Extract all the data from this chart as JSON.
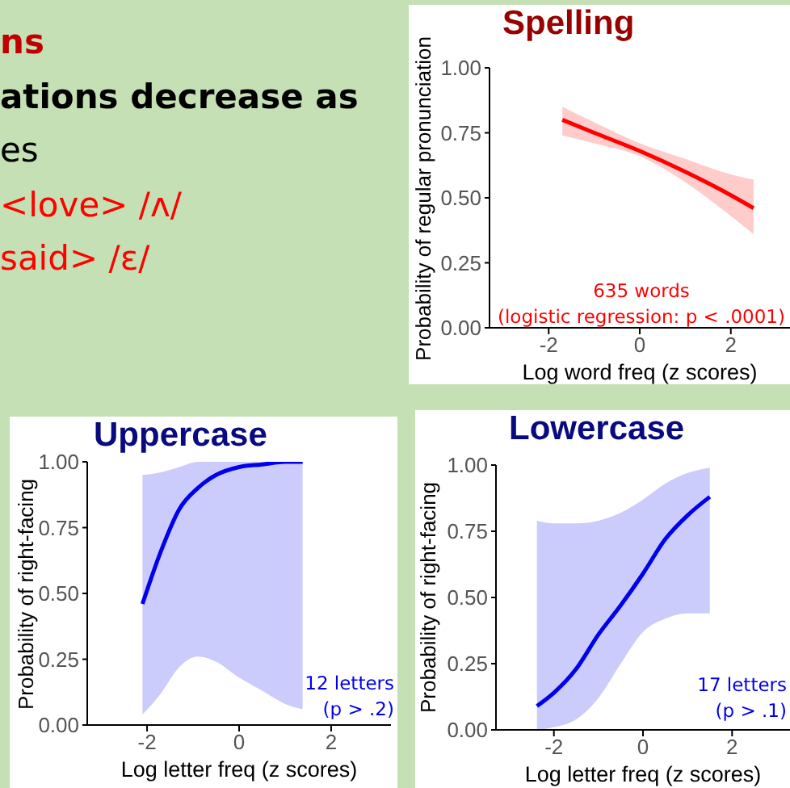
{
  "chart_data": [
    {
      "type": "other",
      "annotations": [
        "ns",
        "ations decrease as",
        "es",
        "<love> /ʌ/",
        "said> /ε/"
      ]
    },
    {
      "type": "line",
      "title": "Spelling",
      "xlabel": "Log word freq (z scores)",
      "ylabel": "Probability of regular pronunciation",
      "annotations": [
        "635 words",
        "(logistic regression: p < .0001)"
      ],
      "xlim": [
        -3.3,
        3.3
      ],
      "xticks": [
        -2,
        0,
        2
      ],
      "ylim": [
        0,
        1
      ],
      "yticks": [
        {
          "value": 0,
          "label": "0.00"
        },
        {
          "value": 0.25,
          "label": "0.25"
        },
        {
          "value": 0.5,
          "label": "0.50"
        },
        {
          "value": 0.75,
          "label": "0.75"
        },
        {
          "value": 1,
          "label": "1.00"
        }
      ],
      "grid": false,
      "legend": false,
      "series": [
        {
          "color": "#ff0000",
          "x": [
            -1.7,
            -1,
            0,
            1,
            2,
            2.5
          ],
          "values": [
            0.8,
            0.75,
            0.68,
            0.6,
            0.51,
            0.46
          ],
          "lower": [
            0.74,
            0.71,
            0.66,
            0.56,
            0.43,
            0.36
          ],
          "upper": [
            0.85,
            0.79,
            0.71,
            0.65,
            0.59,
            0.57
          ]
        }
      ]
    },
    {
      "type": "line",
      "title": "Uppercase",
      "xlabel": "Log letter freq (z scores)",
      "ylabel": "Probability of right-facing",
      "annotations": [
        "12 letters",
        "(p > .2)"
      ],
      "xlim": [
        -3.3,
        3.3
      ],
      "xticks": [
        -2,
        0,
        2
      ],
      "ylim": [
        0,
        1
      ],
      "yticks": [
        {
          "value": 0,
          "label": "0.00"
        },
        {
          "value": 0.25,
          "label": "0.25"
        },
        {
          "value": 0.5,
          "label": "0.50"
        },
        {
          "value": 0.75,
          "label": "0.75"
        },
        {
          "value": 1,
          "label": "1.00"
        }
      ],
      "grid": false,
      "legend": false,
      "series": [
        {
          "color": "#0000ee",
          "x": [
            -2.1,
            -1.7,
            -1.3,
            -0.9,
            -0.5,
            0,
            0.5,
            1,
            1.38
          ],
          "values": [
            0.46,
            0.66,
            0.82,
            0.9,
            0.95,
            0.98,
            0.99,
            1,
            1
          ],
          "lower": [
            0.04,
            0.12,
            0.22,
            0.26,
            0.24,
            0.18,
            0.13,
            0.08,
            0.06
          ],
          "upper": [
            0.95,
            0.96,
            0.98,
            1,
            1,
            1,
            1,
            1,
            1
          ]
        }
      ]
    },
    {
      "type": "line",
      "title": "Lowercase",
      "xlabel": "Log letter freq (z scores)",
      "ylabel": "Probability of right-facing",
      "annotations": [
        "17 letters",
        "(p > .1)"
      ],
      "xlim": [
        -3.3,
        3.3
      ],
      "xticks": [
        -2,
        0,
        2
      ],
      "ylim": [
        0,
        1
      ],
      "yticks": [
        {
          "value": 0,
          "label": "0.00"
        },
        {
          "value": 0.25,
          "label": "0.25"
        },
        {
          "value": 0.5,
          "label": "0.50"
        },
        {
          "value": 0.75,
          "label": "0.75"
        },
        {
          "value": 1,
          "label": "1.00"
        }
      ],
      "grid": false,
      "legend": false,
      "series": [
        {
          "color": "#0000ee",
          "x": [
            -2.38,
            -2,
            -1.5,
            -1,
            -0.5,
            0,
            0.5,
            1,
            1.5
          ],
          "values": [
            0.09,
            0.14,
            0.23,
            0.36,
            0.47,
            0.59,
            0.72,
            0.81,
            0.88
          ],
          "lower": [
            0,
            0.01,
            0.04,
            0.12,
            0.25,
            0.37,
            0.42,
            0.44,
            0.44
          ],
          "upper": [
            0.79,
            0.78,
            0.78,
            0.79,
            0.82,
            0.87,
            0.93,
            0.97,
            0.99
          ]
        }
      ]
    }
  ]
}
